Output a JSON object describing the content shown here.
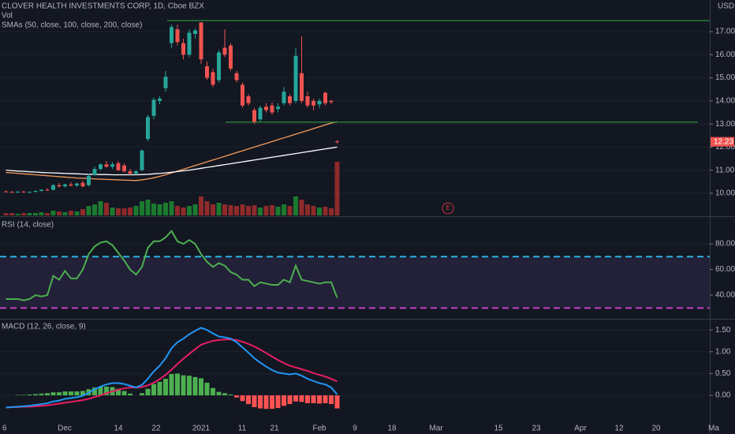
{
  "time_axis": [
    "6",
    "Dec",
    "14",
    "22",
    "2021",
    "11",
    "21",
    "Feb",
    "9",
    "18",
    "Mar",
    "15",
    "23",
    "Apr",
    "12",
    "20",
    "Ma"
  ],
  "chart_data": [
    {
      "type": "candlestick",
      "title": "CLOVER HEALTH INVESTMENTS CORP, 1D, Cboe BZX",
      "volume_label": "Vol",
      "indicator_label": "SMAs (50, close, 100, close, 200, close)",
      "currency": "USD",
      "events": [
        "E"
      ],
      "last_price": 12.23,
      "ylim": [
        9.04,
        18.37
      ],
      "yticks": [
        {
          "value": 10,
          "label": "10.00"
        },
        {
          "value": 11,
          "label": "11.00"
        },
        {
          "value": 12,
          "label": "12.00"
        },
        {
          "value": 13,
          "label": "13.00"
        },
        {
          "value": 14,
          "label": "14.00"
        },
        {
          "value": 15,
          "label": "15.00"
        },
        {
          "value": 16,
          "label": "16.00"
        },
        {
          "value": 17,
          "label": "17.00"
        }
      ],
      "up_color": "#26a69a",
      "down_color": "#ef5350",
      "open": [
        10.08,
        10.06,
        10.05,
        10.07,
        10.04,
        10.06,
        10.1,
        10.15,
        10.15,
        10.35,
        10.3,
        10.38,
        10.33,
        10.45,
        10.35,
        10.8,
        11.05,
        11.25,
        11.15,
        11.3,
        11.2,
        10.95,
        10.85,
        11.0,
        12.35,
        13.35,
        14.0,
        14.55,
        16.5,
        17.1,
        16.5,
        16.0,
        16.9,
        17.4,
        15.5,
        15.25,
        14.9,
        16.3,
        16.4,
        15.2,
        14.7,
        14.2,
        13.6,
        13.2,
        13.75,
        13.8,
        13.65,
        13.9,
        14.2,
        14.0,
        15.2,
        14.2,
        14.0,
        13.85,
        14.35,
        14.0,
        12.25
      ],
      "high": [
        10.12,
        10.1,
        10.09,
        10.1,
        10.08,
        10.12,
        10.18,
        10.22,
        10.4,
        10.45,
        10.42,
        10.48,
        10.45,
        10.55,
        10.85,
        11.15,
        11.3,
        11.4,
        11.35,
        11.4,
        11.3,
        11.05,
        11.0,
        11.9,
        13.4,
        14.15,
        14.2,
        15.3,
        17.3,
        17.3,
        16.7,
        17.1,
        17.15,
        17.4,
        15.7,
        15.4,
        16.2,
        17.1,
        16.5,
        15.3,
        14.8,
        14.3,
        13.7,
        13.8,
        13.9,
        13.95,
        13.9,
        14.6,
        14.3,
        16.3,
        16.8,
        14.4,
        14.1,
        14.1,
        14.4,
        14.05,
        12.3
      ],
      "low": [
        10.04,
        10.03,
        10.02,
        10.03,
        10.01,
        10.04,
        10.08,
        10.1,
        10.12,
        10.25,
        10.25,
        10.3,
        10.28,
        10.25,
        10.3,
        10.75,
        11.0,
        11.1,
        11.05,
        10.95,
        10.9,
        10.8,
        10.8,
        10.95,
        12.25,
        13.2,
        13.85,
        14.4,
        16.3,
        16.4,
        15.8,
        15.9,
        16.7,
        15.6,
        14.9,
        14.6,
        14.8,
        15.9,
        15.3,
        14.8,
        13.7,
        13.8,
        13.0,
        13.1,
        13.5,
        13.4,
        13.5,
        13.8,
        13.8,
        13.9,
        13.9,
        13.7,
        13.6,
        13.7,
        13.8,
        13.85,
        12.15
      ],
      "close": [
        10.06,
        10.05,
        10.07,
        10.04,
        10.06,
        10.1,
        10.15,
        10.12,
        10.35,
        10.3,
        10.38,
        10.33,
        10.42,
        10.3,
        10.75,
        11.05,
        11.25,
        11.15,
        11.25,
        11.0,
        10.95,
        10.85,
        10.95,
        11.85,
        13.3,
        14.05,
        14.1,
        15.05,
        17.2,
        16.55,
        16.0,
        16.95,
        17.05,
        15.8,
        15.0,
        14.7,
        16.1,
        16.0,
        15.4,
        14.9,
        13.8,
        13.9,
        13.1,
        13.7,
        13.6,
        13.5,
        13.75,
        14.4,
        13.9,
        15.95,
        14.0,
        13.8,
        13.8,
        14.0,
        13.9,
        13.95,
        12.23
      ],
      "volume": [
        3,
        3,
        2,
        3,
        3,
        3,
        4,
        3,
        6,
        5,
        4,
        6,
        5,
        8,
        12,
        14,
        18,
        16,
        10,
        9,
        9,
        10,
        12,
        18,
        20,
        15,
        14,
        16,
        18,
        12,
        10,
        12,
        14,
        24,
        18,
        14,
        16,
        14,
        13,
        12,
        14,
        12,
        13,
        10,
        12,
        13,
        11,
        14,
        12,
        24,
        20,
        14,
        12,
        10,
        11,
        9,
        68
      ],
      "volume_lim": [
        0,
        80
      ],
      "volume_up_color": "#1b7a2f",
      "volume_down_color": "#8e2a2a",
      "sma": [
        {
          "color": "#f59b5a",
          "values": [
            10.9,
            10.88,
            10.86,
            10.84,
            10.82,
            10.8,
            10.78,
            10.76,
            10.74,
            10.72,
            10.7,
            10.68,
            10.66,
            10.65,
            10.64,
            10.62,
            10.61,
            10.6,
            10.59,
            10.58,
            10.57,
            10.56,
            10.55,
            10.58,
            10.62,
            10.67,
            10.73,
            10.8,
            10.88,
            10.96,
            11.04,
            11.12,
            11.2,
            11.28,
            11.36,
            11.44,
            11.52,
            11.6,
            11.68,
            11.76,
            11.84,
            11.92,
            12.0,
            12.08,
            12.16,
            12.24,
            12.32,
            12.4,
            12.48,
            12.56,
            12.64,
            12.72,
            12.8,
            12.88,
            12.96,
            13.04,
            13.1
          ]
        },
        {
          "color": "#ffffff",
          "values": [
            11.0,
            10.98,
            10.96,
            10.95,
            10.93,
            10.92,
            10.9,
            10.89,
            10.88,
            10.87,
            10.86,
            10.85,
            10.84,
            10.83,
            10.82,
            10.82,
            10.81,
            10.81,
            10.8,
            10.8,
            10.8,
            10.8,
            10.8,
            10.81,
            10.82,
            10.84,
            10.86,
            10.88,
            10.91,
            10.94,
            10.97,
            11.0,
            11.04,
            11.08,
            11.12,
            11.16,
            11.2,
            11.24,
            11.28,
            11.32,
            11.36,
            11.4,
            11.44,
            11.48,
            11.52,
            11.56,
            11.6,
            11.64,
            11.68,
            11.72,
            11.76,
            11.8,
            11.84,
            11.88,
            11.92,
            11.96,
            12.0
          ]
        }
      ],
      "levels": [
        17.48,
        13.08
      ],
      "level_color": "#2e9e3c"
    },
    {
      "type": "line",
      "title": "RSI (14, close)",
      "color": "#4caf50",
      "ylim": [
        22.2,
        99.7
      ],
      "yticks": [
        {
          "value": 40,
          "label": "40.00"
        },
        {
          "value": 60,
          "label": "60.00"
        },
        {
          "value": 80,
          "label": "80.00"
        }
      ],
      "bands": [
        70,
        30
      ],
      "band_colors": [
        "#2bb3e0",
        "#c13fc7"
      ],
      "values": [
        37,
        37,
        37,
        36,
        37,
        40,
        39,
        40,
        55,
        52,
        59,
        53,
        53,
        60,
        72,
        78,
        81,
        82,
        79,
        73,
        67,
        60,
        56,
        62,
        77,
        82,
        82,
        85,
        90,
        82,
        80,
        83,
        80,
        72,
        66,
        62,
        65,
        63,
        58,
        56,
        52,
        52,
        47,
        50,
        49,
        48,
        48,
        52,
        50,
        63,
        52,
        51,
        50,
        49,
        50,
        50,
        38
      ]
    },
    {
      "type": "macd",
      "title": "MACD (12, 26, close, 9)",
      "ylim": [
        -0.76,
        1.72
      ],
      "yticks": [
        {
          "value": 0,
          "label": "0.00"
        },
        {
          "value": 0.5,
          "label": "0.50"
        },
        {
          "value": 1,
          "label": "1.00"
        },
        {
          "value": 1.5,
          "label": "1.50"
        }
      ],
      "macd": {
        "color": "#2196f3",
        "values": [
          -0.28,
          -0.27,
          -0.26,
          -0.25,
          -0.24,
          -0.22,
          -0.2,
          -0.18,
          -0.14,
          -0.12,
          -0.08,
          -0.06,
          -0.04,
          -0.01,
          0.06,
          0.14,
          0.2,
          0.25,
          0.28,
          0.28,
          0.26,
          0.22,
          0.18,
          0.24,
          0.38,
          0.55,
          0.68,
          0.85,
          1.08,
          1.22,
          1.3,
          1.4,
          1.48,
          1.55,
          1.5,
          1.42,
          1.35,
          1.33,
          1.3,
          1.22,
          1.1,
          0.98,
          0.85,
          0.75,
          0.66,
          0.58,
          0.52,
          0.5,
          0.48,
          0.5,
          0.45,
          0.38,
          0.33,
          0.28,
          0.25,
          0.18,
          0.02
        ]
      },
      "signal": {
        "color": "#e91e63",
        "values": [
          -0.28,
          -0.27,
          -0.27,
          -0.26,
          -0.26,
          -0.25,
          -0.24,
          -0.23,
          -0.21,
          -0.19,
          -0.17,
          -0.15,
          -0.13,
          -0.11,
          -0.08,
          -0.04,
          0.0,
          0.05,
          0.09,
          0.13,
          0.16,
          0.18,
          0.18,
          0.19,
          0.23,
          0.29,
          0.37,
          0.47,
          0.59,
          0.72,
          0.84,
          0.95,
          1.06,
          1.16,
          1.21,
          1.25,
          1.27,
          1.28,
          1.28,
          1.27,
          1.23,
          1.18,
          1.12,
          1.05,
          0.97,
          0.89,
          0.81,
          0.74,
          0.68,
          0.64,
          0.6,
          0.56,
          0.51,
          0.47,
          0.43,
          0.38,
          0.32
        ]
      },
      "histogram": {
        "up_color": "#4caf50",
        "down_color": "#ff5252",
        "values": [
          0,
          0,
          0.01,
          0.01,
          0.02,
          0.03,
          0.04,
          0.05,
          0.07,
          0.07,
          0.09,
          0.09,
          0.09,
          0.1,
          0.14,
          0.18,
          0.2,
          0.2,
          0.19,
          0.15,
          0.1,
          0.04,
          0.0,
          0.05,
          0.15,
          0.26,
          0.31,
          0.38,
          0.49,
          0.5,
          0.46,
          0.45,
          0.42,
          0.39,
          0.29,
          0.17,
          0.08,
          0.05,
          0.02,
          -0.05,
          -0.13,
          -0.2,
          -0.27,
          -0.3,
          -0.31,
          -0.31,
          -0.29,
          -0.24,
          -0.2,
          -0.14,
          -0.15,
          -0.18,
          -0.18,
          -0.19,
          -0.18,
          -0.2,
          -0.3
        ]
      }
    }
  ]
}
